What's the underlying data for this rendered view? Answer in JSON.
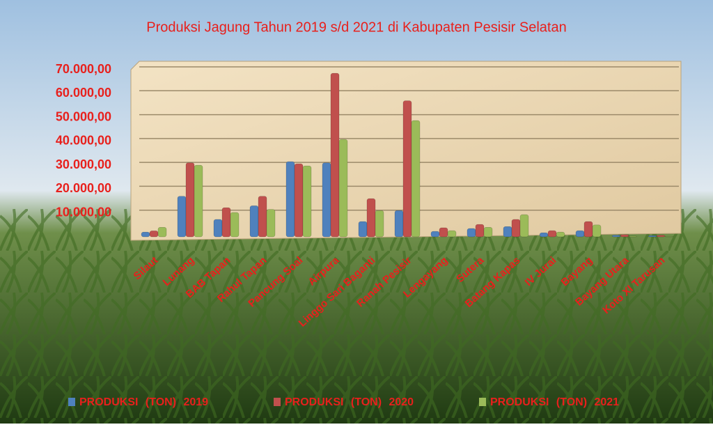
{
  "chart_data": {
    "type": "bar",
    "title": "Produksi Jagung Tahun 2019 s/d 2021 di Kabupaten Pesisir Selatan",
    "categories": [
      "Silaut",
      "Lunang",
      "BAB Tapan",
      "Rahul Tapan",
      "Pancung Soal",
      "Airpura",
      "Linggo Sari Baganti",
      "Ranah Pesisir",
      "Lengayang",
      "Sutera",
      "Batang Kapas",
      "IV Jurai",
      "Bayang",
      "Bayang Utara",
      "Koto XI Tarusan"
    ],
    "series": [
      {
        "name": "PRODUKSI (TON) 2019",
        "color": "#4f81bd",
        "values": [
          2000,
          17000,
          7300,
          13000,
          31500,
          31000,
          6400,
          11000,
          2300,
          3500,
          4300,
          1700,
          2600,
          700,
          500
        ]
      },
      {
        "name": "PRODUKSI (TON) 2020",
        "color": "#c0504d",
        "values": [
          2500,
          31000,
          12200,
          17000,
          30600,
          68500,
          16000,
          57000,
          3800,
          5200,
          7300,
          2600,
          6400,
          900,
          700
        ]
      },
      {
        "name": "PRODUKSI (TON) 2021",
        "color": "#9bbb59",
        "values": [
          4000,
          30000,
          10200,
          11500,
          29700,
          40800,
          11000,
          48700,
          2600,
          4000,
          9300,
          2000,
          5000,
          300,
          200
        ]
      }
    ],
    "ylim": [
      0,
      70000
    ],
    "yticks": [
      {
        "value": 10000,
        "label": "10.000,00"
      },
      {
        "value": 20000,
        "label": "20.000,00"
      },
      {
        "value": 30000,
        "label": "30.000,00"
      },
      {
        "value": 40000,
        "label": "40.000,00"
      },
      {
        "value": 50000,
        "label": "50.000,00"
      },
      {
        "value": 60000,
        "label": "60.000,00"
      },
      {
        "value": 70000,
        "label": "70.000,00"
      }
    ],
    "grid": true
  }
}
